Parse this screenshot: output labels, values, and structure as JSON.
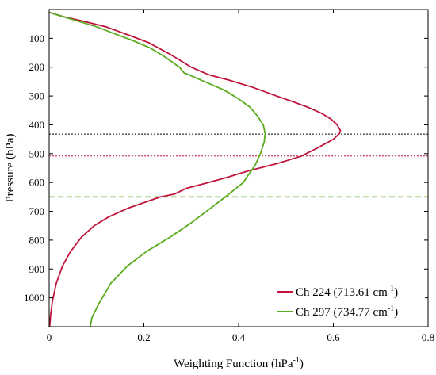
{
  "chart_data": {
    "type": "line",
    "xlabel": "Weighting Function (hPa",
    "xlabel_sup": "-1",
    "xlabel_close": ")",
    "ylabel": "Pressure (hPa)",
    "xlim": [
      0,
      0.8
    ],
    "ylim": [
      0,
      1100
    ],
    "y_reversed": true,
    "xticks": [
      0,
      0.2,
      0.4,
      0.6,
      0.8
    ],
    "xtick_labels": [
      "0",
      "0.2",
      "0.4",
      "0.6",
      "0.8"
    ],
    "yticks": [
      100,
      200,
      300,
      400,
      500,
      600,
      700,
      800,
      900,
      1000
    ],
    "ytick_labels": [
      "100",
      "200",
      "300",
      "400",
      "500",
      "600",
      "700",
      "800",
      "900",
      "1000"
    ],
    "grid": false,
    "legend_position": "bottom-right",
    "series": [
      {
        "name_main": "Ch 224 (713.61 cm",
        "name_sup": "-1",
        "name_close": ")",
        "color": "#c0143c",
        "points": [
          [
            0.0,
            10
          ],
          [
            0.03,
            25
          ],
          [
            0.07,
            40
          ],
          [
            0.12,
            60
          ],
          [
            0.17,
            90
          ],
          [
            0.21,
            115
          ],
          [
            0.255,
            155
          ],
          [
            0.3,
            200
          ],
          [
            0.335,
            225
          ],
          [
            0.345,
            230
          ],
          [
            0.38,
            245
          ],
          [
            0.43,
            270
          ],
          [
            0.48,
            300
          ],
          [
            0.515,
            320
          ],
          [
            0.548,
            340
          ],
          [
            0.575,
            360
          ],
          [
            0.595,
            380
          ],
          [
            0.608,
            400
          ],
          [
            0.615,
            420
          ],
          [
            0.613,
            430
          ],
          [
            0.6,
            450
          ],
          [
            0.578,
            470
          ],
          [
            0.555,
            490
          ],
          [
            0.53,
            510
          ],
          [
            0.48,
            535
          ],
          [
            0.42,
            560
          ],
          [
            0.37,
            585
          ],
          [
            0.325,
            605
          ],
          [
            0.29,
            620
          ],
          [
            0.265,
            640
          ],
          [
            0.235,
            650
          ],
          [
            0.2,
            670
          ],
          [
            0.165,
            690
          ],
          [
            0.125,
            720
          ],
          [
            0.095,
            750
          ],
          [
            0.068,
            790
          ],
          [
            0.045,
            840
          ],
          [
            0.028,
            890
          ],
          [
            0.015,
            950
          ],
          [
            0.007,
            1010
          ],
          [
            0.003,
            1060
          ],
          [
            0.001,
            1100
          ]
        ]
      },
      {
        "name_main": "Ch 297 (734.77 cm",
        "name_sup": "-1",
        "name_close": ")",
        "color": "#5aaa1e",
        "points": [
          [
            0.0,
            10
          ],
          [
            0.03,
            25
          ],
          [
            0.06,
            40
          ],
          [
            0.1,
            60
          ],
          [
            0.14,
            85
          ],
          [
            0.18,
            110
          ],
          [
            0.215,
            135
          ],
          [
            0.245,
            165
          ],
          [
            0.275,
            200
          ],
          [
            0.285,
            220
          ],
          [
            0.3,
            230
          ],
          [
            0.335,
            255
          ],
          [
            0.37,
            280
          ],
          [
            0.4,
            310
          ],
          [
            0.425,
            340
          ],
          [
            0.44,
            370
          ],
          [
            0.452,
            400
          ],
          [
            0.456,
            430
          ],
          [
            0.454,
            460
          ],
          [
            0.446,
            500
          ],
          [
            0.435,
            540
          ],
          [
            0.42,
            575
          ],
          [
            0.41,
            600
          ],
          [
            0.395,
            620
          ],
          [
            0.372,
            650
          ],
          [
            0.34,
            690
          ],
          [
            0.3,
            740
          ],
          [
            0.255,
            790
          ],
          [
            0.205,
            840
          ],
          [
            0.165,
            890
          ],
          [
            0.13,
            950
          ],
          [
            0.105,
            1020
          ],
          [
            0.09,
            1070
          ],
          [
            0.087,
            1100
          ]
        ]
      }
    ],
    "reference_lines": [
      {
        "y": 432,
        "color": "#000000",
        "style": "dotted"
      },
      {
        "y": 508,
        "color": "#c0143c",
        "style": "dotted"
      },
      {
        "y": 650,
        "color": "#5aaa1e",
        "style": "dashed"
      }
    ]
  }
}
